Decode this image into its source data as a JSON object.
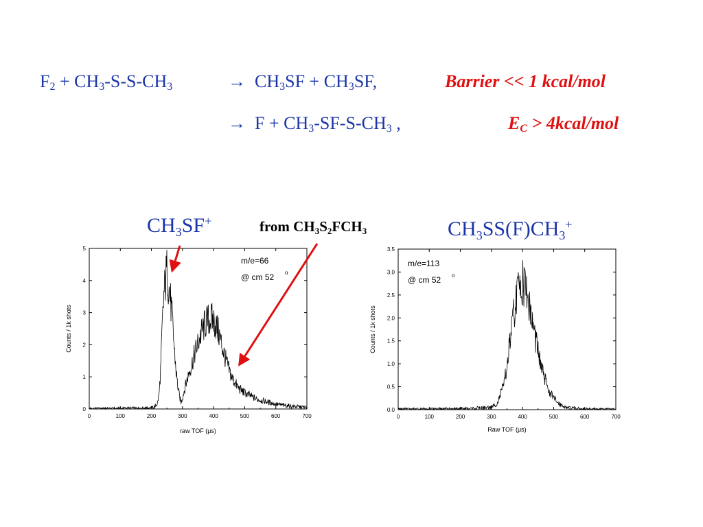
{
  "equations": {
    "line1": {
      "f": "F",
      "f_sub": "2",
      "plus1": " + CH",
      "sub_a": "3",
      "ss": "-S-S-CH",
      "sub_b": "3",
      "arrow": "→",
      "p1": "CH",
      "sub_c": "3",
      "p2": "SF + CH",
      "sub_d": "3",
      "p3": "SF,"
    },
    "barrier": "Barrier << 1 kcal/mol",
    "line2": {
      "arrow": "→",
      "p1": "F + CH",
      "sub_a": "3",
      "p2": "-SF-S-CH",
      "sub_b": "3",
      "p3": " ,"
    },
    "ec": {
      "e": "E",
      "sub": "C",
      "rest": " > 4kcal/mol"
    }
  },
  "labels": {
    "left_species": {
      "a": "CH",
      "sub": "3",
      "b": "SF",
      "sup": "+"
    },
    "from": {
      "a": "from CH",
      "sub1": "3",
      "b": "S",
      "sub2": "2",
      "c": "FCH",
      "sub3": "3"
    },
    "right_species": {
      "a": "CH",
      "sub": "3",
      "b": "SS(F)CH",
      "sub2": "3",
      "sup": "+"
    }
  },
  "chart_data": [
    {
      "type": "line",
      "xlabel": "raw TOF (μs)",
      "ylabel": "Counts / 1k shots",
      "xlim": [
        0,
        700
      ],
      "ylim": [
        0,
        5
      ],
      "xticks": [
        "0",
        "100",
        "200",
        "300",
        "400",
        "500",
        "600",
        "700"
      ],
      "yticks": [
        "0",
        "1",
        "2",
        "3",
        "4",
        "5"
      ],
      "annotation": [
        "m/e=66",
        "@ cm 52",
        "o"
      ],
      "series": [
        {
          "color": "#000000",
          "x": [
            0,
            50,
            100,
            150,
            200,
            210,
            220,
            225,
            230,
            235,
            240,
            245,
            250,
            255,
            260,
            265,
            270,
            275,
            280,
            285,
            290,
            295,
            300,
            305,
            310,
            320,
            330,
            340,
            350,
            360,
            370,
            380,
            390,
            400,
            410,
            420,
            430,
            440,
            450,
            460,
            470,
            480,
            500,
            520,
            540,
            560,
            580,
            600,
            620,
            640,
            660,
            680,
            700
          ],
          "y": [
            0.0,
            0.0,
            0.01,
            0.02,
            0.03,
            0.06,
            0.18,
            0.5,
            1.3,
            2.6,
            3.5,
            4.0,
            4.3,
            3.9,
            3.5,
            3.0,
            2.4,
            1.7,
            1.1,
            0.7,
            0.4,
            0.2,
            0.35,
            0.55,
            0.75,
            1.1,
            1.4,
            1.75,
            2.05,
            2.35,
            2.6,
            2.75,
            2.8,
            2.75,
            2.55,
            2.25,
            1.85,
            1.5,
            1.2,
            0.95,
            0.8,
            0.65,
            0.5,
            0.4,
            0.3,
            0.25,
            0.2,
            0.15,
            0.12,
            0.1,
            0.08,
            0.06,
            0.05
          ]
        }
      ]
    },
    {
      "type": "line",
      "xlabel": "Raw TOF (μs)",
      "ylabel": "Counts / 1k shots",
      "xlim": [
        0,
        700
      ],
      "ylim": [
        0,
        3.5
      ],
      "xticks": [
        "0",
        "100",
        "200",
        "300",
        "400",
        "500",
        "600",
        "700"
      ],
      "yticks": [
        "0.0",
        "0.5",
        "1.0",
        "1.5",
        "2.0",
        "2.5",
        "3.0",
        "3.5"
      ],
      "annotation": [
        "m/e=113",
        "@ cm 52",
        "o"
      ],
      "series": [
        {
          "color": "#000000",
          "x": [
            0,
            100,
            200,
            300,
            320,
            340,
            350,
            360,
            370,
            380,
            390,
            400,
            410,
            420,
            430,
            440,
            450,
            460,
            470,
            480,
            490,
            500,
            520,
            540,
            560,
            600,
            650,
            700
          ],
          "y": [
            0.0,
            0.01,
            0.01,
            0.05,
            0.15,
            0.55,
            0.95,
            1.5,
            2.0,
            2.4,
            2.75,
            2.8,
            2.65,
            2.35,
            1.95,
            1.6,
            1.25,
            0.95,
            0.7,
            0.5,
            0.35,
            0.25,
            0.12,
            0.05,
            0.03,
            0.01,
            0.0,
            0.0
          ]
        }
      ]
    }
  ],
  "arrows": {
    "color": "#e01010"
  }
}
